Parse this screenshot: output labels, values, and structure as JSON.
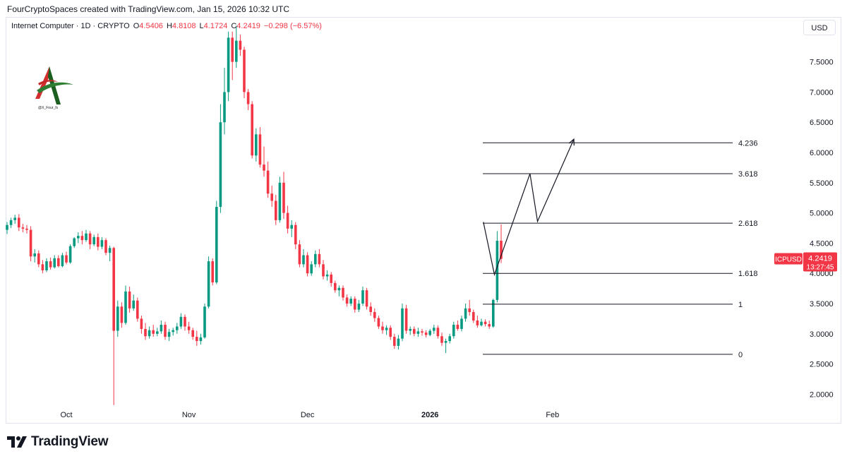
{
  "header": {
    "credit": "FourCryptoSpaces created with TradingView.com, Jan 15, 2026 10:32 UTC"
  },
  "legend": {
    "symbol": "Internet Computer · 1D · CRYPTO",
    "o_label": "O",
    "o_value": "4.5406",
    "h_label": "H",
    "h_value": "4.8108",
    "l_label": "L",
    "l_value": "4.1724",
    "c_label": "C",
    "c_value": "4.2419",
    "change": "−0.298 (−6.57%)"
  },
  "currency_button": "USD",
  "watermark": {
    "handle": "@X_Four_fs"
  },
  "footer": {
    "brand": "TradingView"
  },
  "colors": {
    "up": "#089981",
    "down": "#f23645",
    "line": "#131722",
    "grid": "#e0e3eb"
  },
  "chart_data": {
    "type": "candlestick",
    "symbol": "ICPUSD",
    "last_price": "4.2419",
    "countdown": "13:27:45",
    "y_ticks": [
      "2.0000",
      "2.5000",
      "3.0000",
      "3.5000",
      "4.0000",
      "4.5000",
      "5.0000",
      "5.5000",
      "6.0000",
      "6.5000",
      "7.0000",
      "7.5000"
    ],
    "ylim": [
      1.8,
      8.0
    ],
    "x_ticks": [
      {
        "label": "Oct",
        "index": 15
      },
      {
        "label": "Nov",
        "index": 46
      },
      {
        "label": "Dec",
        "index": 76
      },
      {
        "label": "2026",
        "index": 107
      },
      {
        "label": "Feb",
        "index": 138
      }
    ],
    "fib_levels": [
      {
        "label": "0",
        "value": 2.66
      },
      {
        "label": "1",
        "value": 3.49
      },
      {
        "label": "1.618",
        "value": 4.0
      },
      {
        "label": "2.618",
        "value": 4.83
      },
      {
        "label": "3.618",
        "value": 5.65
      },
      {
        "label": "4.236",
        "value": 6.16
      }
    ],
    "projection_path": [
      {
        "i": 120.5,
        "v": 4.85
      },
      {
        "i": 123.3,
        "v": 3.98
      },
      {
        "i": 132.3,
        "v": 5.65
      },
      {
        "i": 134.2,
        "v": 4.86
      },
      {
        "i": 143.4,
        "v": 6.22
      }
    ],
    "candles": [
      {
        "o": 4.72,
        "h": 4.85,
        "l": 4.65,
        "c": 4.8
      },
      {
        "o": 4.8,
        "h": 4.92,
        "l": 4.75,
        "c": 4.88
      },
      {
        "o": 4.88,
        "h": 4.97,
        "l": 4.82,
        "c": 4.92
      },
      {
        "o": 4.92,
        "h": 4.98,
        "l": 4.7,
        "c": 4.76
      },
      {
        "o": 4.76,
        "h": 4.82,
        "l": 4.68,
        "c": 4.74
      },
      {
        "o": 4.74,
        "h": 4.8,
        "l": 4.66,
        "c": 4.72
      },
      {
        "o": 4.72,
        "h": 4.78,
        "l": 4.2,
        "c": 4.28
      },
      {
        "o": 4.28,
        "h": 4.4,
        "l": 4.18,
        "c": 4.33
      },
      {
        "o": 4.33,
        "h": 4.38,
        "l": 4.1,
        "c": 4.15
      },
      {
        "o": 4.15,
        "h": 4.22,
        "l": 4.0,
        "c": 4.05
      },
      {
        "o": 4.05,
        "h": 4.25,
        "l": 4.02,
        "c": 4.2
      },
      {
        "o": 4.2,
        "h": 4.26,
        "l": 4.06,
        "c": 4.1
      },
      {
        "o": 4.1,
        "h": 4.3,
        "l": 4.08,
        "c": 4.25
      },
      {
        "o": 4.25,
        "h": 4.3,
        "l": 4.1,
        "c": 4.12
      },
      {
        "o": 4.12,
        "h": 4.34,
        "l": 4.1,
        "c": 4.3
      },
      {
        "o": 4.3,
        "h": 4.36,
        "l": 4.15,
        "c": 4.18
      },
      {
        "o": 4.18,
        "h": 4.48,
        "l": 4.16,
        "c": 4.45
      },
      {
        "o": 4.45,
        "h": 4.6,
        "l": 4.42,
        "c": 4.58
      },
      {
        "o": 4.58,
        "h": 4.68,
        "l": 4.5,
        "c": 4.62
      },
      {
        "o": 4.62,
        "h": 4.7,
        "l": 4.48,
        "c": 4.55
      },
      {
        "o": 4.55,
        "h": 4.72,
        "l": 4.52,
        "c": 4.66
      },
      {
        "o": 4.66,
        "h": 4.7,
        "l": 4.4,
        "c": 4.48
      },
      {
        "o": 4.48,
        "h": 4.64,
        "l": 4.45,
        "c": 4.6
      },
      {
        "o": 4.6,
        "h": 4.66,
        "l": 4.38,
        "c": 4.44
      },
      {
        "o": 4.44,
        "h": 4.6,
        "l": 4.4,
        "c": 4.55
      },
      {
        "o": 4.55,
        "h": 4.58,
        "l": 4.3,
        "c": 4.34
      },
      {
        "o": 4.34,
        "h": 4.46,
        "l": 4.2,
        "c": 4.42
      },
      {
        "o": 4.42,
        "h": 4.44,
        "l": 1.82,
        "c": 3.05
      },
      {
        "o": 3.05,
        "h": 3.55,
        "l": 2.95,
        "c": 3.45
      },
      {
        "o": 3.45,
        "h": 3.52,
        "l": 3.1,
        "c": 3.18
      },
      {
        "o": 3.18,
        "h": 3.8,
        "l": 3.15,
        "c": 3.7
      },
      {
        "o": 3.7,
        "h": 3.78,
        "l": 3.35,
        "c": 3.42
      },
      {
        "o": 3.42,
        "h": 3.65,
        "l": 3.38,
        "c": 3.55
      },
      {
        "o": 3.55,
        "h": 3.6,
        "l": 3.2,
        "c": 3.25
      },
      {
        "o": 3.25,
        "h": 3.3,
        "l": 3.0,
        "c": 3.08
      },
      {
        "o": 3.08,
        "h": 3.18,
        "l": 2.9,
        "c": 2.96
      },
      {
        "o": 2.96,
        "h": 3.12,
        "l": 2.92,
        "c": 3.06
      },
      {
        "o": 3.06,
        "h": 3.15,
        "l": 2.95,
        "c": 3.0
      },
      {
        "o": 3.0,
        "h": 3.1,
        "l": 2.96,
        "c": 3.04
      },
      {
        "o": 3.04,
        "h": 3.22,
        "l": 3.0,
        "c": 3.15
      },
      {
        "o": 3.15,
        "h": 3.2,
        "l": 2.9,
        "c": 2.95
      },
      {
        "o": 2.95,
        "h": 3.08,
        "l": 2.88,
        "c": 3.03
      },
      {
        "o": 3.03,
        "h": 3.1,
        "l": 2.97,
        "c": 3.06
      },
      {
        "o": 3.06,
        "h": 3.18,
        "l": 3.0,
        "c": 3.12
      },
      {
        "o": 3.12,
        "h": 3.34,
        "l": 3.08,
        "c": 3.28
      },
      {
        "o": 3.28,
        "h": 3.32,
        "l": 3.05,
        "c": 3.12
      },
      {
        "o": 3.12,
        "h": 3.2,
        "l": 3.0,
        "c": 3.06
      },
      {
        "o": 3.06,
        "h": 3.1,
        "l": 2.9,
        "c": 2.95
      },
      {
        "o": 2.95,
        "h": 3.05,
        "l": 2.8,
        "c": 2.88
      },
      {
        "o": 2.88,
        "h": 3.0,
        "l": 2.82,
        "c": 2.94
      },
      {
        "o": 2.94,
        "h": 3.5,
        "l": 2.92,
        "c": 3.45
      },
      {
        "o": 3.45,
        "h": 4.28,
        "l": 3.42,
        "c": 4.2
      },
      {
        "o": 4.2,
        "h": 4.25,
        "l": 3.8,
        "c": 3.85
      },
      {
        "o": 3.85,
        "h": 5.2,
        "l": 3.82,
        "c": 5.1
      },
      {
        "o": 5.1,
        "h": 6.8,
        "l": 5.0,
        "c": 6.5
      },
      {
        "o": 6.5,
        "h": 7.4,
        "l": 6.3,
        "c": 7.0
      },
      {
        "o": 7.0,
        "h": 8.0,
        "l": 6.85,
        "c": 7.9
      },
      {
        "o": 7.9,
        "h": 8.0,
        "l": 7.2,
        "c": 7.5
      },
      {
        "o": 7.5,
        "h": 8.1,
        "l": 7.4,
        "c": 7.85
      },
      {
        "o": 7.85,
        "h": 7.95,
        "l": 7.6,
        "c": 7.7
      },
      {
        "o": 7.7,
        "h": 7.75,
        "l": 6.9,
        "c": 7.0
      },
      {
        "o": 7.0,
        "h": 7.05,
        "l": 6.7,
        "c": 6.8
      },
      {
        "o": 6.8,
        "h": 6.85,
        "l": 5.9,
        "c": 5.95
      },
      {
        "o": 5.95,
        "h": 6.4,
        "l": 5.85,
        "c": 6.3
      },
      {
        "o": 6.3,
        "h": 6.42,
        "l": 5.75,
        "c": 5.8
      },
      {
        "o": 5.8,
        "h": 6.1,
        "l": 5.6,
        "c": 5.7
      },
      {
        "o": 5.7,
        "h": 5.85,
        "l": 5.25,
        "c": 5.32
      },
      {
        "o": 5.32,
        "h": 5.45,
        "l": 5.1,
        "c": 5.2
      },
      {
        "o": 5.2,
        "h": 5.3,
        "l": 4.8,
        "c": 4.88
      },
      {
        "o": 4.88,
        "h": 5.6,
        "l": 4.84,
        "c": 5.5
      },
      {
        "o": 5.5,
        "h": 5.68,
        "l": 4.9,
        "c": 5.0
      },
      {
        "o": 5.0,
        "h": 5.12,
        "l": 4.66,
        "c": 4.74
      },
      {
        "o": 4.74,
        "h": 4.88,
        "l": 4.6,
        "c": 4.8
      },
      {
        "o": 4.8,
        "h": 4.85,
        "l": 4.4,
        "c": 4.48
      },
      {
        "o": 4.48,
        "h": 4.55,
        "l": 4.1,
        "c": 4.15
      },
      {
        "o": 4.15,
        "h": 4.4,
        "l": 4.1,
        "c": 4.3
      },
      {
        "o": 4.3,
        "h": 4.35,
        "l": 3.95,
        "c": 4.0
      },
      {
        "o": 4.0,
        "h": 4.2,
        "l": 3.96,
        "c": 4.15
      },
      {
        "o": 4.15,
        "h": 4.38,
        "l": 4.1,
        "c": 4.32
      },
      {
        "o": 4.32,
        "h": 4.4,
        "l": 4.1,
        "c": 4.15
      },
      {
        "o": 4.15,
        "h": 4.22,
        "l": 3.9,
        "c": 3.95
      },
      {
        "o": 3.95,
        "h": 4.05,
        "l": 3.88,
        "c": 3.98
      },
      {
        "o": 3.98,
        "h": 4.02,
        "l": 3.78,
        "c": 3.84
      },
      {
        "o": 3.84,
        "h": 3.88,
        "l": 3.68,
        "c": 3.72
      },
      {
        "o": 3.72,
        "h": 3.8,
        "l": 3.62,
        "c": 3.76
      },
      {
        "o": 3.76,
        "h": 3.8,
        "l": 3.55,
        "c": 3.6
      },
      {
        "o": 3.6,
        "h": 3.65,
        "l": 3.45,
        "c": 3.5
      },
      {
        "o": 3.5,
        "h": 3.62,
        "l": 3.46,
        "c": 3.58
      },
      {
        "o": 3.58,
        "h": 3.62,
        "l": 3.35,
        "c": 3.4
      },
      {
        "o": 3.4,
        "h": 3.56,
        "l": 3.36,
        "c": 3.5
      },
      {
        "o": 3.5,
        "h": 3.78,
        "l": 3.46,
        "c": 3.72
      },
      {
        "o": 3.72,
        "h": 3.76,
        "l": 3.4,
        "c": 3.45
      },
      {
        "o": 3.45,
        "h": 3.52,
        "l": 3.3,
        "c": 3.36
      },
      {
        "o": 3.36,
        "h": 3.42,
        "l": 3.2,
        "c": 3.26
      },
      {
        "o": 3.26,
        "h": 3.3,
        "l": 3.08,
        "c": 3.12
      },
      {
        "o": 3.12,
        "h": 3.2,
        "l": 3.0,
        "c": 3.06
      },
      {
        "o": 3.06,
        "h": 3.14,
        "l": 2.98,
        "c": 3.1
      },
      {
        "o": 3.1,
        "h": 3.14,
        "l": 2.9,
        "c": 2.95
      },
      {
        "o": 2.95,
        "h": 3.0,
        "l": 2.75,
        "c": 2.8
      },
      {
        "o": 2.8,
        "h": 2.98,
        "l": 2.74,
        "c": 2.92
      },
      {
        "o": 2.92,
        "h": 3.5,
        "l": 2.88,
        "c": 3.42
      },
      {
        "o": 3.42,
        "h": 3.48,
        "l": 3.0,
        "c": 3.05
      },
      {
        "o": 3.05,
        "h": 3.12,
        "l": 2.98,
        "c": 3.08
      },
      {
        "o": 3.08,
        "h": 3.12,
        "l": 2.96,
        "c": 3.0
      },
      {
        "o": 3.0,
        "h": 3.1,
        "l": 2.95,
        "c": 3.04
      },
      {
        "o": 3.04,
        "h": 3.08,
        "l": 2.97,
        "c": 3.02
      },
      {
        "o": 3.02,
        "h": 3.06,
        "l": 2.94,
        "c": 2.98
      },
      {
        "o": 2.98,
        "h": 3.08,
        "l": 2.96,
        "c": 3.05
      },
      {
        "o": 3.05,
        "h": 3.15,
        "l": 3.0,
        "c": 3.1
      },
      {
        "o": 3.1,
        "h": 3.14,
        "l": 2.92,
        "c": 2.96
      },
      {
        "o": 2.96,
        "h": 3.02,
        "l": 2.8,
        "c": 2.85
      },
      {
        "o": 2.85,
        "h": 2.92,
        "l": 2.68,
        "c": 2.88
      },
      {
        "o": 2.88,
        "h": 3.0,
        "l": 2.84,
        "c": 2.96
      },
      {
        "o": 2.96,
        "h": 3.2,
        "l": 2.92,
        "c": 3.15
      },
      {
        "o": 3.15,
        "h": 3.22,
        "l": 3.05,
        "c": 3.08
      },
      {
        "o": 3.08,
        "h": 3.3,
        "l": 3.04,
        "c": 3.25
      },
      {
        "o": 3.25,
        "h": 3.5,
        "l": 3.2,
        "c": 3.42
      },
      {
        "o": 3.42,
        "h": 3.56,
        "l": 3.3,
        "c": 3.36
      },
      {
        "o": 3.36,
        "h": 3.4,
        "l": 3.18,
        "c": 3.22
      },
      {
        "o": 3.22,
        "h": 3.3,
        "l": 3.1,
        "c": 3.14
      },
      {
        "o": 3.14,
        "h": 3.25,
        "l": 3.12,
        "c": 3.2
      },
      {
        "o": 3.2,
        "h": 3.24,
        "l": 3.12,
        "c": 3.16
      },
      {
        "o": 3.16,
        "h": 3.22,
        "l": 3.08,
        "c": 3.12
      },
      {
        "o": 3.12,
        "h": 3.58,
        "l": 3.1,
        "c": 3.56
      },
      {
        "o": 3.56,
        "h": 4.7,
        "l": 3.52,
        "c": 4.54
      },
      {
        "o": 4.54,
        "h": 4.81,
        "l": 4.17,
        "c": 4.24
      }
    ]
  }
}
